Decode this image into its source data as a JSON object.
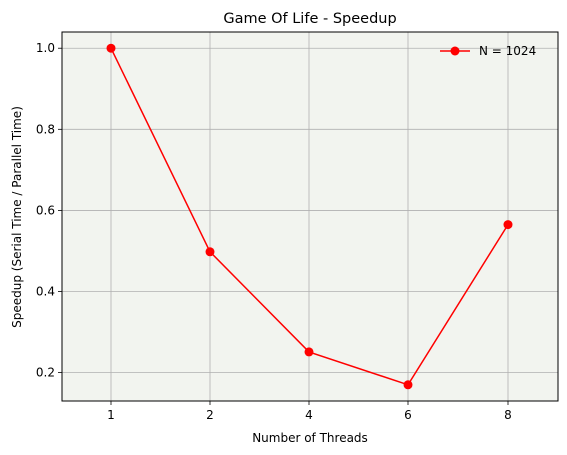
{
  "chart_data": {
    "type": "line",
    "title": "Game Of Life - Speedup",
    "xlabel": "Number of Threads",
    "ylabel": "Speedup (Serial Time / Parallel Time)",
    "categories": [
      "1",
      "2",
      "4",
      "6",
      "8"
    ],
    "series": [
      {
        "name": "N = 1024",
        "values": [
          1.0,
          0.498,
          0.251,
          0.17,
          0.565
        ],
        "color": "#ff0000"
      }
    ],
    "ylim": [
      0.13,
      1.04
    ],
    "yticks": [
      0.2,
      0.4,
      0.6,
      0.8,
      1.0
    ],
    "ytick_labels": [
      "0.2",
      "0.4",
      "0.6",
      "0.8",
      "1.0"
    ],
    "grid": true,
    "plot_background": "#f2f4ef",
    "grid_color": "#b0b0b0",
    "legend_position": "top-right"
  }
}
